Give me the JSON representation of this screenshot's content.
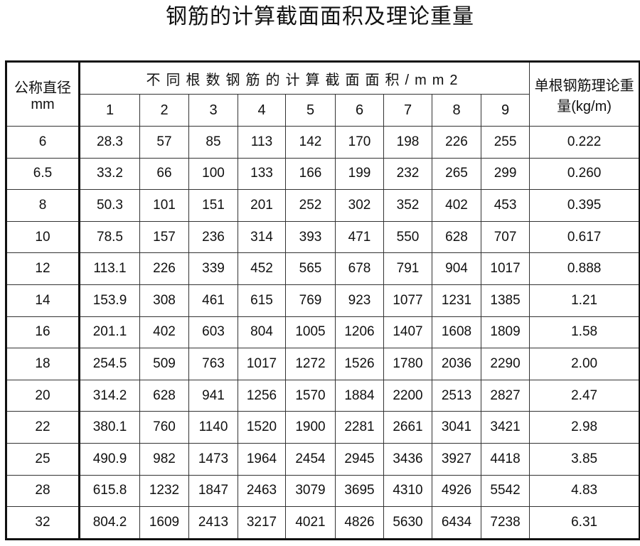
{
  "title": "钢筋的计算截面面积及理论重量",
  "table": {
    "col_diameter": "公称直径mm",
    "col_group": "不同根数钢筋的计算截面面积/mm2",
    "col_weight": "单根钢筋理论重量(kg/m)",
    "counts": [
      "1",
      "2",
      "3",
      "4",
      "5",
      "6",
      "7",
      "8",
      "9"
    ],
    "rows": [
      [
        "6",
        "28.3",
        "57",
        "85",
        "113",
        "142",
        "170",
        "198",
        "226",
        "255",
        "0.222"
      ],
      [
        "6.5",
        "33.2",
        "66",
        "100",
        "133",
        "166",
        "199",
        "232",
        "265",
        "299",
        "0.260"
      ],
      [
        "8",
        "50.3",
        "101",
        "151",
        "201",
        "252",
        "302",
        "352",
        "402",
        "453",
        "0.395"
      ],
      [
        "10",
        "78.5",
        "157",
        "236",
        "314",
        "393",
        "471",
        "550",
        "628",
        "707",
        "0.617"
      ],
      [
        "12",
        "113.1",
        "226",
        "339",
        "452",
        "565",
        "678",
        "791",
        "904",
        "1017",
        "0.888"
      ],
      [
        "14",
        "153.9",
        "308",
        "461",
        "615",
        "769",
        "923",
        "1077",
        "1231",
        "1385",
        "1.21"
      ],
      [
        "16",
        "201.1",
        "402",
        "603",
        "804",
        "1005",
        "1206",
        "1407",
        "1608",
        "1809",
        "1.58"
      ],
      [
        "18",
        "254.5",
        "509",
        "763",
        "1017",
        "1272",
        "1526",
        "1780",
        "2036",
        "2290",
        "2.00"
      ],
      [
        "20",
        "314.2",
        "628",
        "941",
        "1256",
        "1570",
        "1884",
        "2200",
        "2513",
        "2827",
        "2.47"
      ],
      [
        "22",
        "380.1",
        "760",
        "1140",
        "1520",
        "1900",
        "2281",
        "2661",
        "3041",
        "3421",
        "2.98"
      ],
      [
        "25",
        "490.9",
        "982",
        "1473",
        "1964",
        "2454",
        "2945",
        "3436",
        "3927",
        "4418",
        "3.85"
      ],
      [
        "28",
        "615.8",
        "1232",
        "1847",
        "2463",
        "3079",
        "3695",
        "4310",
        "4926",
        "5542",
        "4.83"
      ],
      [
        "32",
        "804.2",
        "1609",
        "2413",
        "3217",
        "4021",
        "4826",
        "5630",
        "6434",
        "7238",
        "6.31"
      ]
    ]
  }
}
